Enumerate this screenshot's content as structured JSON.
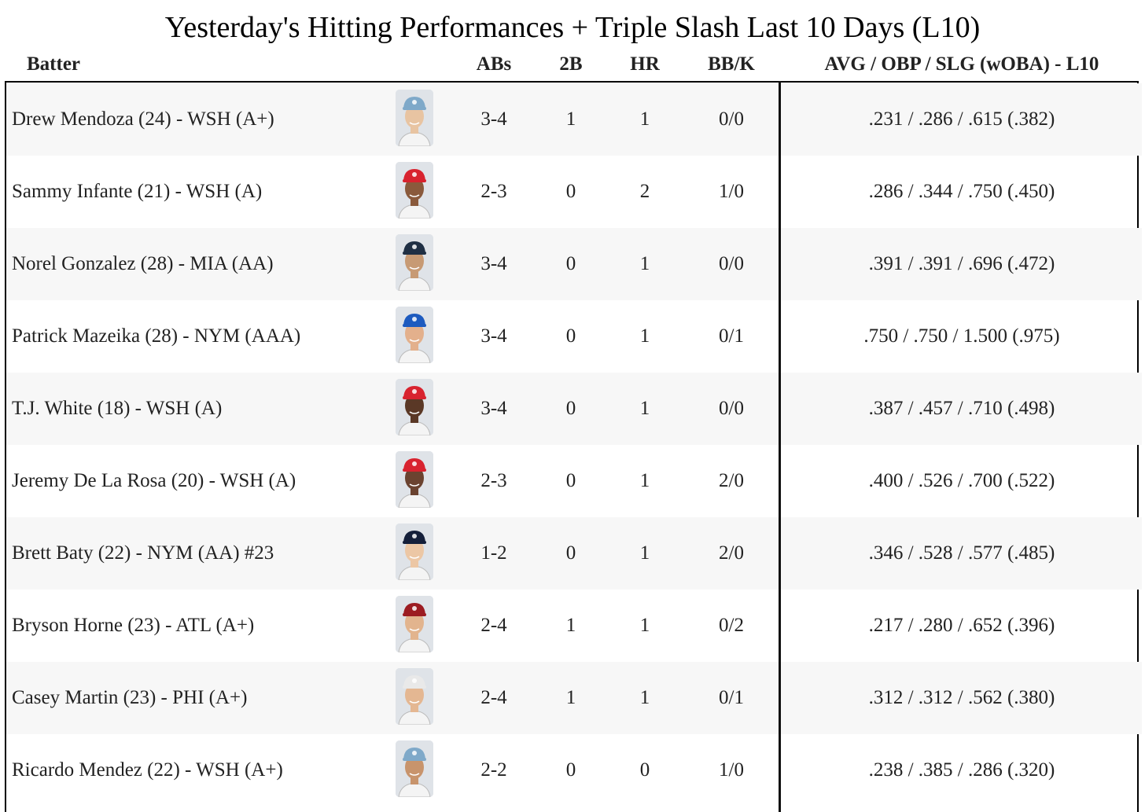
{
  "title": "Yesterday's Hitting Performances + Triple Slash Last 10 Days (L10)",
  "headers": {
    "batter": "Batter",
    "abs": "ABs",
    "doubles": "2B",
    "hr": "HR",
    "bbk": "BB/K",
    "slash": "AVG / OBP / SLG (wOBA) - L10"
  },
  "rows": [
    {
      "name": "Drew Mendoza (24) - WSH (A+)",
      "ab": "3-4",
      "doubles": "1",
      "hr": "1",
      "bbk": "0/0",
      "slash": ".231 / .286 / .615 (.382)",
      "cap_color": "#7fa9c9",
      "skin": "#e8c4a2",
      "photo_icon": "player-headshot-icon"
    },
    {
      "name": "Sammy Infante (21) - WSH (A)",
      "ab": "2-3",
      "doubles": "0",
      "hr": "2",
      "bbk": "1/0",
      "slash": ".286 / .344 / .750 (.450)",
      "cap_color": "#d8232f",
      "skin": "#8a5a3c",
      "photo_icon": "player-headshot-icon"
    },
    {
      "name": "Norel Gonzalez (28) - MIA (AA)",
      "ab": "3-4",
      "doubles": "0",
      "hr": "1",
      "bbk": "0/0",
      "slash": ".391 / .391 / .696 (.472)",
      "cap_color": "#1f2f44",
      "skin": "#c79a74",
      "photo_icon": "player-headshot-icon"
    },
    {
      "name": "Patrick Mazeika (28) - NYM (AAA)",
      "ab": "3-4",
      "doubles": "0",
      "hr": "1",
      "bbk": "0/1",
      "slash": ".750 / .750 / 1.500 (.975)",
      "cap_color": "#1e5bbf",
      "skin": "#e3b08c",
      "photo_icon": "player-headshot-icon"
    },
    {
      "name": "T.J. White (18) - WSH (A)",
      "ab": "3-4",
      "doubles": "0",
      "hr": "1",
      "bbk": "0/0",
      "slash": ".387 / .457 / .710 (.498)",
      "cap_color": "#d8232f",
      "skin": "#5a3826",
      "photo_icon": "player-headshot-icon"
    },
    {
      "name": "Jeremy De La Rosa (20) - WSH (A)",
      "ab": "2-3",
      "doubles": "0",
      "hr": "1",
      "bbk": "2/0",
      "slash": ".400 / .526 / .700 (.522)",
      "cap_color": "#d8232f",
      "skin": "#6b4330",
      "photo_icon": "player-headshot-icon"
    },
    {
      "name": "Brett Baty (22) - NYM (AA) #23",
      "ab": "1-2",
      "doubles": "0",
      "hr": "1",
      "bbk": "2/0",
      "slash": ".346 / .528 / .577 (.485)",
      "cap_color": "#141f3a",
      "skin": "#ecc7a5",
      "photo_icon": "player-headshot-icon"
    },
    {
      "name": "Bryson Horne (23) - ATL (A+)",
      "ab": "2-4",
      "doubles": "1",
      "hr": "1",
      "bbk": "0/2",
      "slash": ".217 / .280 / .652 (.396)",
      "cap_color": "#9c1c22",
      "skin": "#e2b48e",
      "photo_icon": "player-headshot-icon"
    },
    {
      "name": "Casey Martin (23) - PHI (A+)",
      "ab": "2-4",
      "doubles": "1",
      "hr": "1",
      "bbk": "0/1",
      "slash": ".312 / .312 / .562 (.380)",
      "cap_color": "#e9e9e9",
      "skin": "#e4b792",
      "photo_icon": "player-headshot-icon"
    },
    {
      "name": "Ricardo Mendez (22) - WSH (A+)",
      "ab": "2-2",
      "doubles": "0",
      "hr": "0",
      "bbk": "1/0",
      "slash": ".238 / .385 / .286 (.320)",
      "cap_color": "#7fa9c9",
      "skin": "#c8946c",
      "photo_icon": "player-headshot-icon"
    }
  ]
}
